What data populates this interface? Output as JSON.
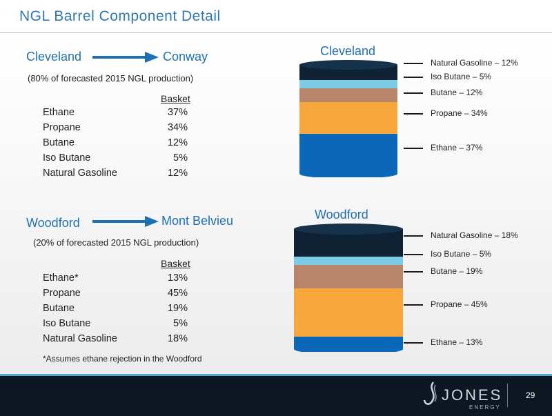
{
  "slide": {
    "title": "NGL Barrel Component Detail",
    "page_number": "29"
  },
  "cleveland": {
    "origin": "Cleveland",
    "destination": "Conway",
    "note": "(80% of forecasted 2015 NGL production)",
    "basket_header": "Basket",
    "rows": [
      {
        "component": "Ethane",
        "pct": "37%"
      },
      {
        "component": "Propane",
        "pct": "34%"
      },
      {
        "component": "Butane",
        "pct": "12%"
      },
      {
        "component": "Iso Butane",
        "pct": "5%"
      },
      {
        "component": "Natural Gasoline",
        "pct": "12%"
      }
    ],
    "cylinder_label": "Cleveland",
    "legend": [
      "Natural Gasoline – 12%",
      "Iso Butane – 5%",
      "Butane – 12%",
      "Propane – 34%",
      "Ethane – 37%"
    ]
  },
  "woodford": {
    "origin": "Woodford",
    "destination": "Mont Belvieu",
    "note": "(20% of forecasted 2015 NGL production)",
    "basket_header": "Basket",
    "rows": [
      {
        "component": "Ethane*",
        "pct": "13%"
      },
      {
        "component": "Propane",
        "pct": "45%"
      },
      {
        "component": "Butane",
        "pct": "19%"
      },
      {
        "component": "Iso Butane",
        "pct": "5%"
      },
      {
        "component": "Natural Gasoline",
        "pct": "18%"
      }
    ],
    "cylinder_label": "Woodford",
    "legend": [
      "Natural Gasoline – 18%",
      "Iso Butane – 5%",
      "Butane – 19%",
      "Propane – 45%",
      "Ethane – 13%"
    ],
    "footnote": "*Assumes ethane rejection in the Woodford"
  },
  "colors": {
    "accent": "#1f6fb4",
    "natural_gasoline": "#0e2233",
    "iso_butane": "#7ecbe8",
    "butane": "#b8846a",
    "propane": "#f8a73c",
    "ethane": "#0b67b8",
    "footer": "#0d1722"
  },
  "logo": {
    "name": "JONES",
    "sub": "ENERGY"
  }
}
